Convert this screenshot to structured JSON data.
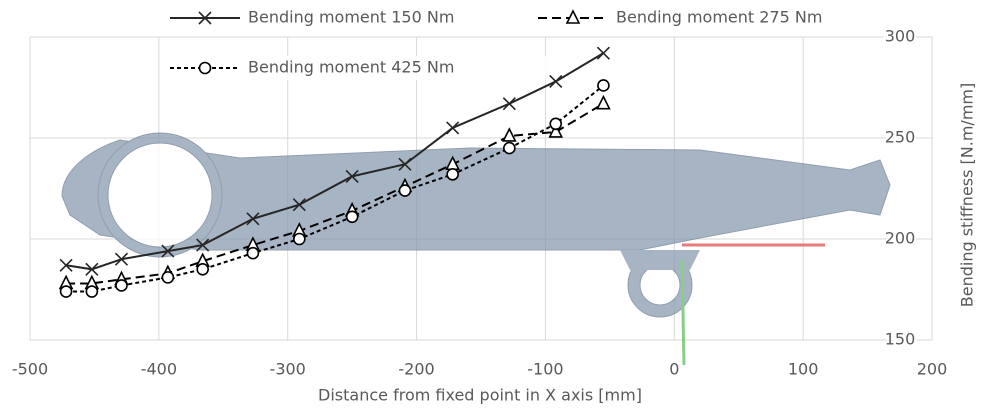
{
  "chart_data": {
    "type": "line",
    "x_label": "Distance from fixed point in X axis [mm]",
    "y_label": "Bending stiffness [N.m/mm]",
    "xlim": [
      -500,
      200
    ],
    "xticks": [
      -500,
      -400,
      -300,
      -200,
      -100,
      0,
      100,
      200
    ],
    "ylim": [
      150,
      300
    ],
    "yticks": [
      150,
      200,
      250,
      300
    ],
    "grid": true,
    "y_axis_side": "right",
    "x": [
      -472,
      -452,
      -429,
      -393,
      -366,
      -327,
      -291,
      -250,
      -209,
      -172,
      -128,
      -92,
      -55
    ],
    "series": [
      {
        "name": "Bending moment 150 Nm",
        "color": "#262626",
        "dash": "solid",
        "marker": "cross",
        "values": [
          187,
          185,
          190,
          194,
          197,
          210,
          217,
          231,
          237,
          255,
          267,
          278,
          292
        ]
      },
      {
        "name": "Bending moment 275 Nm",
        "color": "#000000",
        "dash": "dashed",
        "marker": "triangle",
        "values": [
          178,
          178,
          180,
          183,
          189,
          197,
          204,
          214,
          226,
          237,
          251,
          253,
          267
        ]
      },
      {
        "name": "Bending moment 425 Nm",
        "color": "#000000",
        "dash": "dotted",
        "marker": "circle",
        "values": [
          174,
          174,
          177,
          181,
          185,
          193,
          200,
          211,
          224,
          232,
          245,
          257,
          276
        ]
      }
    ]
  }
}
